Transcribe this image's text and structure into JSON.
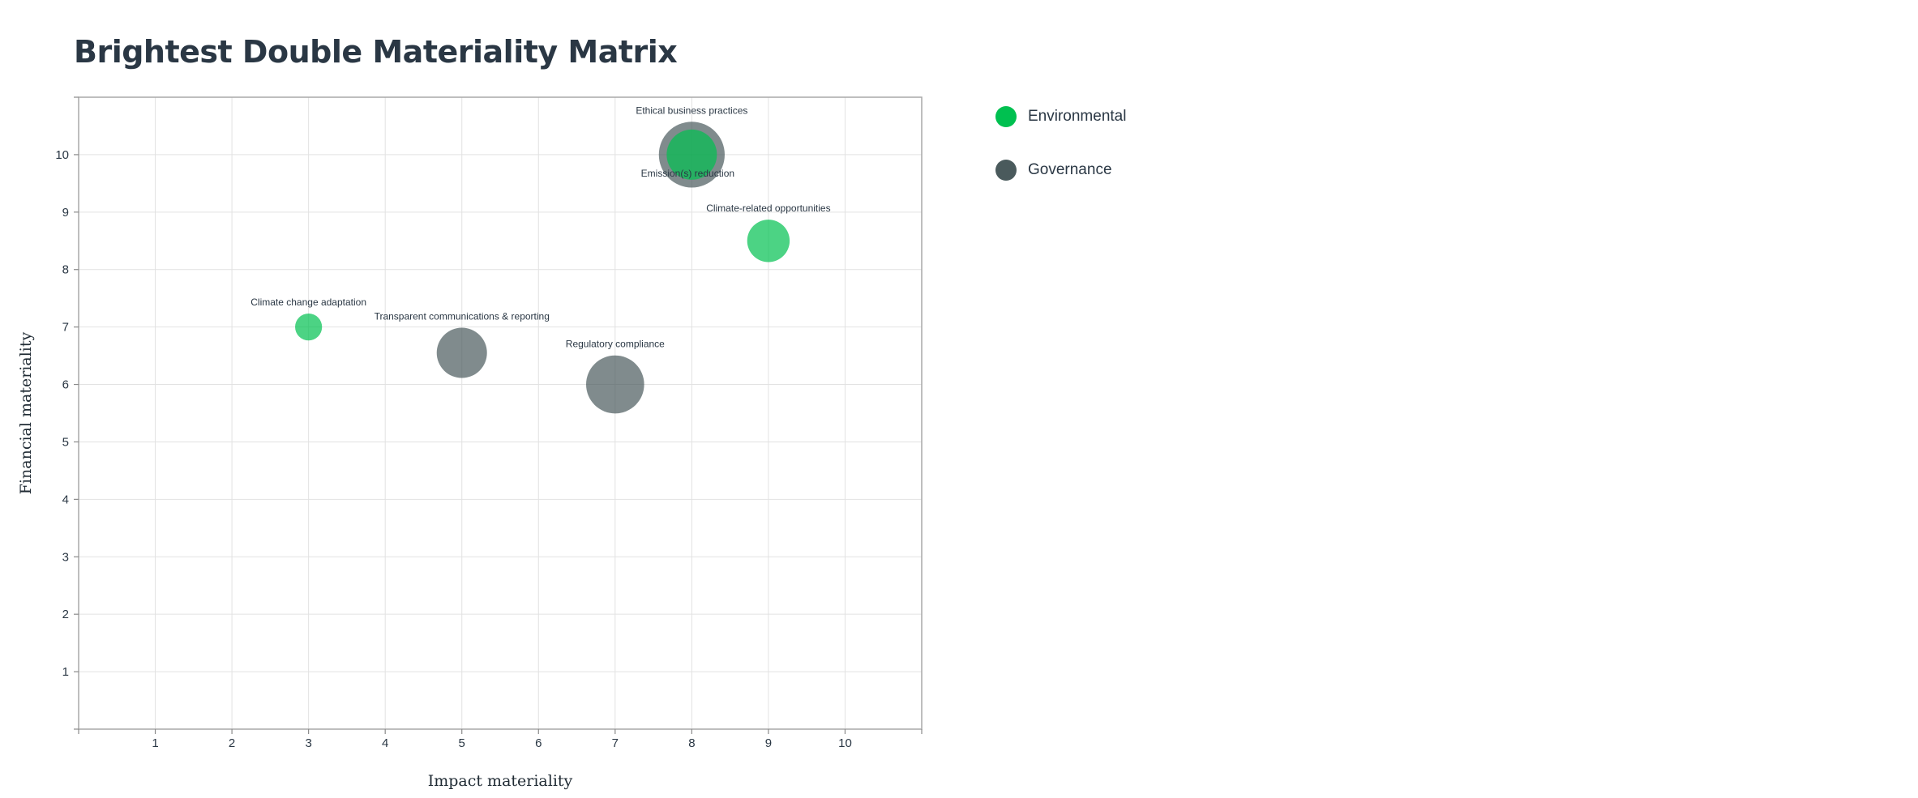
{
  "page": {
    "title": "Brightest Double Materiality Matrix"
  },
  "legend": [
    {
      "label": "Environmental",
      "color": "#00c050"
    },
    {
      "label": "Governance",
      "color": "#4a5a5c"
    }
  ],
  "chart_data": {
    "type": "scatter",
    "title": "Brightest Double Materiality Matrix",
    "xlabel": "Impact materiality",
    "ylabel": "Financial materiality",
    "xlim": [
      0,
      11
    ],
    "ylim": [
      0,
      11
    ],
    "x_ticks": [
      1,
      2,
      3,
      4,
      5,
      6,
      7,
      8,
      9,
      10
    ],
    "y_ticks": [
      1,
      2,
      3,
      4,
      5,
      6,
      7,
      8,
      9,
      10
    ],
    "grid": true,
    "legend_position": "right",
    "series": [
      {
        "name": "Environmental",
        "color": "#00c050",
        "points": [
          {
            "label": "Climate change adaptation",
            "x": 3,
            "y": 7,
            "size": 2
          },
          {
            "label": "Emission(s) reduction",
            "x": 8,
            "y": 10,
            "size": 5
          },
          {
            "label": "Climate-related opportunities",
            "x": 9,
            "y": 8.5,
            "size": 4
          }
        ]
      },
      {
        "name": "Governance",
        "color": "#4a5a5c",
        "points": [
          {
            "label": "Ethical business practices",
            "x": 8,
            "y": 10,
            "size": 7
          },
          {
            "label": "Transparent communications & reporting",
            "x": 5,
            "y": 6.55,
            "size": 5
          },
          {
            "label": "Regulatory compliance",
            "x": 7,
            "y": 6,
            "size": 6
          }
        ]
      }
    ]
  }
}
